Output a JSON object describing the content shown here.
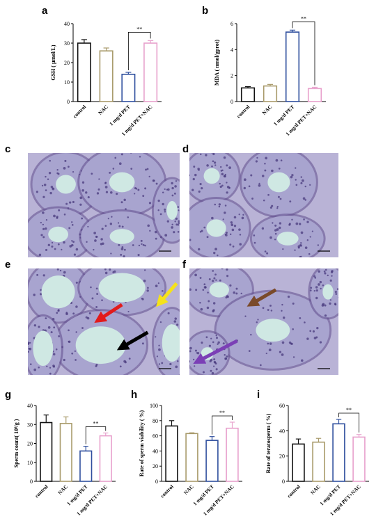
{
  "colors": {
    "control": "#111111",
    "NAC": "#a89a6a",
    "pet": "#2f4f9e",
    "pet_nac": "#e8a0cc",
    "tissue_bg": "#cfe8e3",
    "tissue_stain": "#7b62a8"
  },
  "chart_data": [
    {
      "panel": "a",
      "type": "bar",
      "ylabel": "GSH ( μmol/L)",
      "categories": [
        "control",
        "NAC",
        "1 mg/d PET",
        "1 mg/d PET+NAC"
      ],
      "values": [
        30,
        26,
        14,
        30
      ],
      "errors": [
        1.8,
        1.5,
        1.0,
        1.3
      ],
      "ylim": [
        0,
        40
      ],
      "yticks": [
        0,
        10,
        20,
        30,
        40
      ],
      "significance": {
        "pair": [
          2,
          3
        ],
        "label": "**"
      }
    },
    {
      "panel": "b",
      "type": "bar",
      "ylabel": "MDA ( nmol/gprot)",
      "categories": [
        "control",
        "NAC",
        "1 mg/d PET",
        "1 mg/d PET+NAC"
      ],
      "values": [
        1.05,
        1.2,
        5.35,
        1.0
      ],
      "errors": [
        0.1,
        0.12,
        0.15,
        0.1
      ],
      "ylim": [
        0,
        6
      ],
      "yticks": [
        0,
        2,
        4,
        6
      ],
      "significance": {
        "pair": [
          2,
          3
        ],
        "label": "**"
      }
    },
    {
      "panel": "g",
      "type": "bar",
      "ylabel": "Sperm count( 10⁸/g )",
      "categories": [
        "control",
        "NAC",
        "1 mg/d PET",
        "1 mg/d PET+NAC"
      ],
      "values": [
        31,
        30.5,
        16,
        24
      ],
      "errors": [
        4,
        3.5,
        2.5,
        1.5
      ],
      "ylim": [
        0,
        40
      ],
      "yticks": [
        0,
        10,
        20,
        30,
        40
      ],
      "significance": {
        "pair": [
          2,
          3
        ],
        "label": "**"
      }
    },
    {
      "panel": "h",
      "type": "bar",
      "ylabel": "Rate of sperm viability ( %)",
      "categories": [
        "control",
        "NAC",
        "1 mg/d PET",
        "1 mg/d PET+NAC"
      ],
      "values": [
        73,
        63,
        54,
        70
      ],
      "errors": [
        7,
        1,
        5,
        8
      ],
      "ylim": [
        0,
        100
      ],
      "yticks": [
        0,
        20,
        40,
        60,
        80,
        100
      ],
      "significance": {
        "pair": [
          2,
          3
        ],
        "label": "**"
      }
    },
    {
      "panel": "i",
      "type": "bar",
      "ylabel": "Rate of teratosperm ( %)",
      "categories": [
        "control",
        "NAC",
        "1 mg/d PET",
        "1 mg/d PET+NAC"
      ],
      "values": [
        29.5,
        31,
        45.5,
        35
      ],
      "errors": [
        4,
        3,
        3.5,
        2
      ],
      "ylim": [
        0,
        60
      ],
      "yticks": [
        0,
        20,
        40,
        60
      ],
      "significance": {
        "pair": [
          2,
          3
        ],
        "label": "**"
      }
    }
  ],
  "micrographs": [
    {
      "panel": "c",
      "arrows": []
    },
    {
      "panel": "d",
      "arrows": []
    },
    {
      "panel": "e",
      "arrows": [
        "red",
        "yellow",
        "black"
      ]
    },
    {
      "panel": "f",
      "arrows": [
        "brown",
        "purple"
      ]
    }
  ],
  "arrow_colors": {
    "red": "#e21b1b",
    "yellow": "#f5e21a",
    "black": "#000000",
    "brown": "#7a4a2a",
    "purple": "#7b3fb6"
  }
}
